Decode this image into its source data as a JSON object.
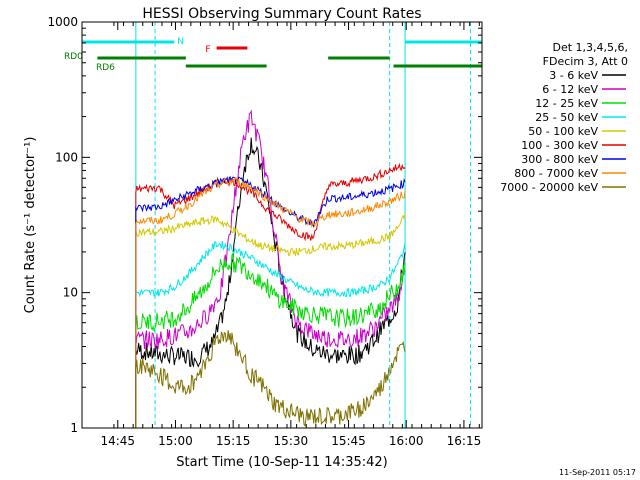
{
  "chart_data": {
    "type": "line",
    "title": "HESSI Observing Summary Count Rates",
    "xlabel": "Start Time (10-Sep-11 14:35:42)",
    "ylabel": "Count Rate (s⁻¹ detector⁻¹)",
    "footer": "11-Sep-2011 05:17",
    "y_scale": "log",
    "ylim": [
      1,
      1000
    ],
    "xlim_minutes_from_start": [
      0,
      104
    ],
    "x_tick_labels": [
      "14:45",
      "15:00",
      "15:15",
      "15:30",
      "15:45",
      "16:00",
      "16:15"
    ],
    "y_tick_labels": [
      "1",
      "10",
      "100",
      "1000"
    ],
    "grid": false,
    "legend": {
      "position": "right",
      "header": [
        "Det 1,3,4,5,6,",
        "FDecim 3, Att 0"
      ],
      "entries": [
        {
          "label": "3 - 6 keV",
          "color": "#000000"
        },
        {
          "label": "6 - 12 keV",
          "color": "#cc00cc"
        },
        {
          "label": "12 - 25 keV",
          "color": "#00dd00"
        },
        {
          "label": "25 - 50 keV",
          "color": "#00e6e6"
        },
        {
          "label": "50 - 100 keV",
          "color": "#d4c800"
        },
        {
          "label": "100 - 300 keV",
          "color": "#e60000"
        },
        {
          "label": "300 - 800 keV",
          "color": "#0000e6"
        },
        {
          "label": "800 - 7000 keV",
          "color": "#ff8800"
        },
        {
          "label": "7000 - 20000 keV",
          "color": "#807000"
        }
      ]
    },
    "flags": [
      {
        "label": "N",
        "color": "#00e6e6",
        "segments": [
          [
            0,
            24
          ],
          [
            84,
            104
          ]
        ]
      },
      {
        "label": "F",
        "color": "#e60000",
        "segments": [
          [
            35,
            43
          ]
        ]
      },
      {
        "label": "RD0",
        "color": "#008000",
        "segments": [
          [
            4,
            27
          ],
          [
            64,
            80
          ]
        ]
      },
      {
        "label": "RD6",
        "color": "#008000",
        "segments": [
          [
            27,
            48
          ],
          [
            81,
            104
          ]
        ]
      }
    ],
    "vlines": [
      {
        "x": 14,
        "color": "#00e6e6",
        "style": "solid"
      },
      {
        "x": 19,
        "color": "#00e6e6",
        "style": "dashed"
      },
      {
        "x": 84,
        "color": "#00e6e6",
        "style": "solid"
      },
      {
        "x": 80,
        "color": "#00e6e6",
        "style": "dashed"
      },
      {
        "x": 101,
        "color": "#00e6e6",
        "style": "dashed"
      }
    ],
    "series": [
      {
        "name": "3 - 6 keV",
        "color": "#000000",
        "x": [
          14,
          20,
          24,
          30,
          34,
          36,
          38,
          40,
          42,
          44,
          46,
          48,
          50,
          52,
          56,
          60,
          64,
          68,
          72,
          76,
          78,
          80,
          82,
          84
        ],
        "y": [
          3.8,
          3.5,
          3.4,
          3.3,
          4.2,
          6,
          10,
          30,
          80,
          130,
          95,
          55,
          25,
          12,
          5,
          3.8,
          3.5,
          3.4,
          3.5,
          4.5,
          5.5,
          6.5,
          8,
          20
        ]
      },
      {
        "name": "6 - 12 keV",
        "color": "#cc00cc",
        "x": [
          14,
          20,
          24,
          28,
          32,
          36,
          38,
          40,
          42,
          44,
          46,
          48,
          50,
          52,
          56,
          60,
          64,
          68,
          72,
          76,
          80,
          82,
          84
        ],
        "y": [
          4.5,
          4.5,
          4.8,
          5.2,
          6.5,
          10,
          22,
          60,
          140,
          200,
          130,
          70,
          30,
          12,
          6,
          5,
          4.6,
          4.5,
          4.7,
          5.5,
          7.5,
          9,
          15
        ]
      },
      {
        "name": "12 - 25 keV",
        "color": "#00dd00",
        "x": [
          14,
          20,
          24,
          28,
          32,
          35,
          38,
          41,
          44,
          47,
          50,
          54,
          58,
          62,
          66,
          70,
          74,
          78,
          80,
          82,
          84
        ],
        "y": [
          6,
          6.2,
          6.5,
          8,
          11,
          15,
          17,
          16,
          14,
          12,
          9.5,
          8,
          7.2,
          6.8,
          6.5,
          6.5,
          7,
          8,
          9.5,
          11,
          15
        ]
      },
      {
        "name": "25 - 50 keV",
        "color": "#00e6e6",
        "x": [
          14,
          20,
          24,
          28,
          32,
          35,
          38,
          41,
          44,
          47,
          50,
          54,
          58,
          62,
          66,
          70,
          74,
          78,
          80,
          82,
          84
        ],
        "y": [
          10,
          10,
          11,
          14,
          19,
          23,
          22,
          20,
          18,
          16,
          14,
          12,
          10.5,
          10,
          10,
          10,
          10.5,
          11.5,
          13,
          16,
          22
        ]
      },
      {
        "name": "50 - 100 keV",
        "color": "#d4c800",
        "x": [
          14,
          20,
          24,
          28,
          32,
          35,
          38,
          41,
          44,
          47,
          50,
          54,
          56,
          60,
          64,
          68,
          72,
          76,
          80,
          82,
          84
        ],
        "y": [
          28,
          28,
          30,
          32,
          34,
          35,
          31,
          27,
          24,
          22,
          21,
          20,
          20,
          21,
          22,
          22,
          23,
          24,
          26,
          30,
          37
        ]
      },
      {
        "name": "100 - 300 keV",
        "color": "#e60000",
        "x": [
          14,
          20,
          24,
          28,
          32,
          36,
          40,
          44,
          48,
          52,
          56,
          60,
          64,
          68,
          72,
          76,
          80,
          84
        ],
        "y": [
          58,
          60,
          44,
          50,
          58,
          67,
          66,
          55,
          42,
          34,
          28,
          25,
          62,
          64,
          68,
          72,
          80,
          88
        ]
      },
      {
        "name": "300 - 800 keV",
        "color": "#0000e6",
        "x": [
          14,
          20,
          24,
          28,
          32,
          36,
          40,
          44,
          48,
          52,
          56,
          60,
          64,
          68,
          72,
          76,
          80,
          84
        ],
        "y": [
          42,
          43,
          48,
          54,
          60,
          66,
          68,
          62,
          52,
          42,
          36,
          32,
          50,
          50,
          52,
          55,
          58,
          65
        ]
      },
      {
        "name": "800 - 7000 keV",
        "color": "#ff8800",
        "x": [
          14,
          20,
          24,
          28,
          32,
          36,
          40,
          44,
          48,
          52,
          56,
          60,
          64,
          68,
          72,
          76,
          80,
          84
        ],
        "y": [
          34,
          34,
          38,
          45,
          55,
          64,
          67,
          60,
          50,
          42,
          36,
          32,
          38,
          38,
          40,
          43,
          47,
          54
        ]
      },
      {
        "name": "7000 - 20000 keV",
        "color": "#807000",
        "x": [
          14,
          20,
          24,
          28,
          32,
          35,
          38,
          41,
          44,
          47,
          50,
          54,
          58,
          62,
          66,
          70,
          74,
          78,
          80,
          82,
          84
        ],
        "y": [
          3,
          2.5,
          2,
          2,
          3,
          4.5,
          5,
          3.5,
          2.5,
          2,
          1.5,
          1.3,
          1.2,
          1.2,
          1.2,
          1.3,
          1.5,
          2,
          2.8,
          3.5,
          4
        ]
      }
    ]
  }
}
